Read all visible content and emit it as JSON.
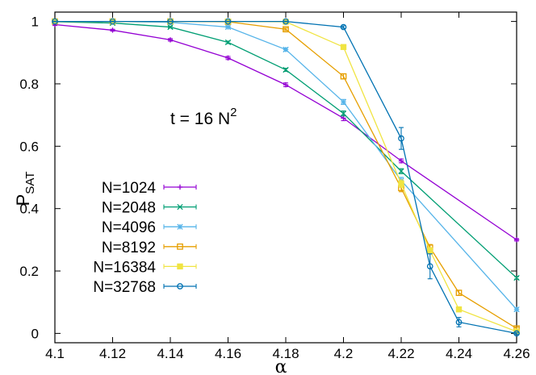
{
  "chart_data": {
    "type": "line",
    "title": "",
    "xlabel": "α",
    "ylabel": "P",
    "ylabel_sub": "SAT",
    "xlim": [
      4.1,
      4.26
    ],
    "ylim": [
      -0.03,
      1.03
    ],
    "xticks": [
      "4.1",
      "4.12",
      "4.14",
      "4.16",
      "4.18",
      "4.2",
      "4.22",
      "4.24",
      "4.26"
    ],
    "xtick_values": [
      4.1,
      4.12,
      4.14,
      4.16,
      4.18,
      4.2,
      4.22,
      4.24,
      4.26
    ],
    "yticks": [
      "0",
      "0.2",
      "0.4",
      "0.6",
      "0.8",
      "1"
    ],
    "ytick_values": [
      0,
      0.2,
      0.4,
      0.6,
      0.8,
      1
    ],
    "annotation": {
      "text": "t = 16 N",
      "sup": "2"
    },
    "legend_position": "center-left",
    "grid": false,
    "series": [
      {
        "name": "N=1024",
        "color": "#9400d3",
        "marker": "plus",
        "x": [
          4.1,
          4.12,
          4.14,
          4.16,
          4.18,
          4.2,
          4.22,
          4.26
        ],
        "y": [
          0.99,
          0.972,
          0.941,
          0.883,
          0.797,
          0.69,
          0.553,
          0.3
        ],
        "err": [
          0.003,
          0.003,
          0.004,
          0.005,
          0.006,
          0.008,
          0.006,
          0.004
        ]
      },
      {
        "name": "N=2048",
        "color": "#009e73",
        "marker": "cross",
        "x": [
          4.1,
          4.12,
          4.14,
          4.16,
          4.18,
          4.2,
          4.22,
          4.26
        ],
        "y": [
          0.999,
          0.995,
          0.982,
          0.933,
          0.845,
          0.705,
          0.52,
          0.178
        ],
        "err": [
          0.002,
          0.002,
          0.003,
          0.004,
          0.005,
          0.008,
          0.008,
          0.004
        ]
      },
      {
        "name": "N=4096",
        "color": "#56b4e9",
        "marker": "star",
        "x": [
          4.1,
          4.12,
          4.14,
          4.16,
          4.18,
          4.2,
          4.22,
          4.26
        ],
        "y": [
          1.0,
          1.0,
          0.997,
          0.982,
          0.91,
          0.742,
          0.49,
          0.077
        ],
        "err": [
          0.001,
          0.001,
          0.002,
          0.003,
          0.005,
          0.008,
          0.01,
          0.005
        ]
      },
      {
        "name": "N=8192",
        "color": "#e69f00",
        "marker": "square",
        "x": [
          4.1,
          4.12,
          4.14,
          4.16,
          4.18,
          4.2,
          4.22,
          4.23,
          4.24,
          4.26
        ],
        "y": [
          1.0,
          1.0,
          1.0,
          0.999,
          0.975,
          0.824,
          0.466,
          0.275,
          0.13,
          0.016
        ],
        "err": [
          0.001,
          0.001,
          0.001,
          0.002,
          0.004,
          0.008,
          0.012,
          0.01,
          0.008,
          0.004
        ]
      },
      {
        "name": "N=16384",
        "color": "#f0e442",
        "marker": "filled-square",
        "x": [
          4.1,
          4.12,
          4.14,
          4.16,
          4.18,
          4.2,
          4.22,
          4.23,
          4.24,
          4.26
        ],
        "y": [
          1.0,
          1.0,
          1.0,
          1.0,
          0.999,
          0.918,
          0.48,
          0.265,
          0.077,
          0.006
        ],
        "err": [
          0.001,
          0.001,
          0.001,
          0.001,
          0.002,
          0.006,
          0.012,
          0.01,
          0.008,
          0.003
        ]
      },
      {
        "name": "N=32768",
        "color": "#0072b2",
        "marker": "circle",
        "x": [
          4.1,
          4.12,
          4.14,
          4.16,
          4.18,
          4.2,
          4.22,
          4.23,
          4.24,
          4.26
        ],
        "y": [
          1.0,
          1.0,
          1.0,
          1.0,
          1.0,
          0.982,
          0.625,
          0.215,
          0.036,
          0.0
        ],
        "err": [
          0.001,
          0.001,
          0.001,
          0.001,
          0.001,
          0.004,
          0.035,
          0.04,
          0.015,
          0.003
        ]
      }
    ]
  }
}
